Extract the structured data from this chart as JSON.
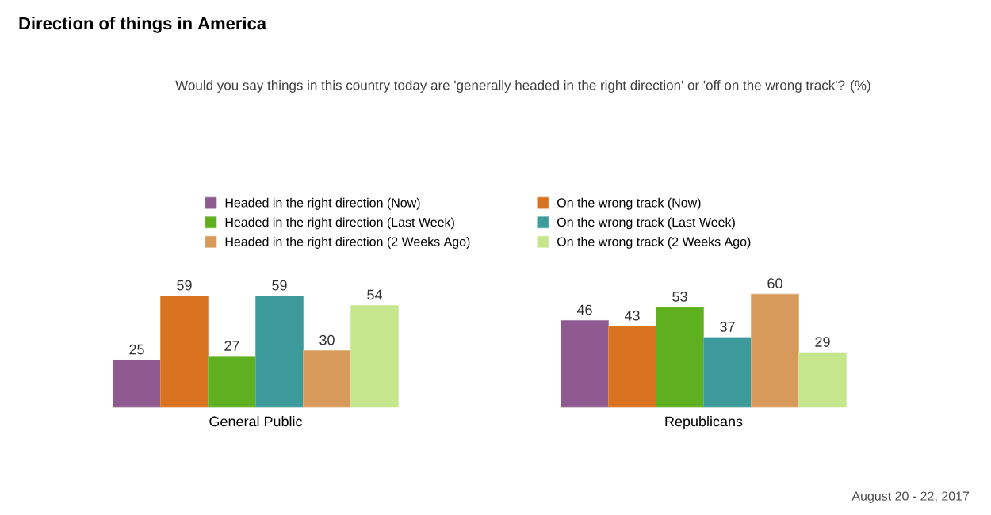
{
  "chart_data": {
    "type": "bar",
    "title": "Direction of things in America",
    "subtitle": "Would you say things in this country today are 'generally headed in the right direction' or 'off on the wrong track'? (%)",
    "categories": [
      "General Public",
      "Republicans"
    ],
    "series": [
      {
        "name": "Headed in the right direction (Now)",
        "color": "#8e5a8f",
        "values": [
          25,
          46
        ]
      },
      {
        "name": "On the wrong track (Now)",
        "color": "#d9731f",
        "values": [
          59,
          43
        ]
      },
      {
        "name": "Headed in the right direction (Last Week)",
        "color": "#5fb01e",
        "values": [
          27,
          53
        ]
      },
      {
        "name": "On the wrong track (Last Week)",
        "color": "#3d9a9a",
        "values": [
          59,
          37
        ]
      },
      {
        "name": "Headed in the right direction (2 Weeks Ago)",
        "color": "#d89a5a",
        "values": [
          30,
          60
        ]
      },
      {
        "name": "On the wrong track (2 Weeks Ago)",
        "color": "#c5e68c",
        "values": [
          54,
          29
        ]
      }
    ],
    "data_labels": true,
    "legend": "top",
    "annotations": [
      "August 20 - 22, 2017"
    ]
  }
}
